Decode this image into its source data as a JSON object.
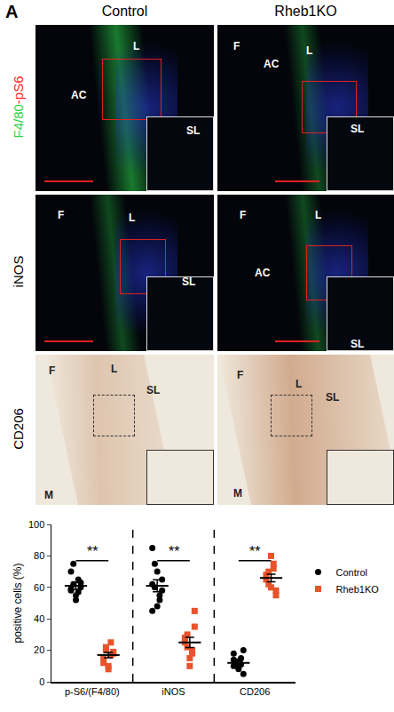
{
  "figure": {
    "panel_label": "A",
    "columns": [
      "Control",
      "Rheb1KO"
    ],
    "rows": [
      {
        "label_parts": [
          {
            "text": "F4/80",
            "color": "#2fd34a"
          },
          {
            "text": "-pS6",
            "color": "#ff2020"
          }
        ],
        "panels": [
          [
            "L",
            "AC",
            "SL"
          ],
          [
            "F",
            "AC",
            "L",
            "SL"
          ]
        ]
      },
      {
        "label_parts": [
          {
            "text": "iNOS",
            "color": "#000000"
          }
        ],
        "panels": [
          [
            "F",
            "L",
            "SL"
          ],
          [
            "F",
            "L",
            "AC",
            "SL"
          ]
        ]
      },
      {
        "label_parts": [
          {
            "text": "CD206",
            "color": "#000000"
          }
        ],
        "panels": [
          [
            "F",
            "L",
            "SL",
            "M"
          ],
          [
            "F",
            "L",
            "SL",
            "M"
          ]
        ]
      }
    ]
  },
  "chart_data": {
    "type": "scatter",
    "categories": [
      "p-S6/(F4/80)",
      "iNOS",
      "CD206"
    ],
    "y_label": "positive cells (%)",
    "ylim": [
      0,
      100
    ],
    "yticks": [
      0,
      20,
      40,
      60,
      80,
      100
    ],
    "legend": "right",
    "series": [
      {
        "name": "Control",
        "color": "#000000",
        "marker": "circle",
        "values": [
          [
            58,
            62,
            55,
            65,
            60,
            70,
            75,
            52,
            57,
            63,
            59
          ],
          [
            62,
            75,
            48,
            55,
            65,
            85,
            60,
            70,
            52,
            58,
            45
          ],
          [
            10,
            12,
            8,
            15,
            5,
            18,
            13,
            9,
            11,
            20,
            14
          ]
        ],
        "mean": [
          61,
          61,
          12
        ],
        "sem": [
          2.2,
          3.8,
          1.3
        ]
      },
      {
        "name": "Rheb1KO",
        "color": "#e8532b",
        "marker": "square",
        "values": [
          [
            15,
            20,
            10,
            25,
            18,
            12,
            22,
            8,
            17,
            19
          ],
          [
            25,
            30,
            15,
            20,
            35,
            28,
            22,
            10,
            18,
            45
          ],
          [
            65,
            70,
            60,
            75,
            55,
            68,
            62,
            80,
            72,
            58
          ]
        ],
        "mean": [
          17,
          25,
          66
        ],
        "sem": [
          1.7,
          3.2,
          2.4
        ]
      }
    ],
    "annotations": [
      {
        "category": 0,
        "y": 77,
        "text": "**"
      },
      {
        "category": 1,
        "y": 77,
        "text": "**"
      },
      {
        "category": 2,
        "y": 77,
        "text": "**"
      }
    ]
  }
}
